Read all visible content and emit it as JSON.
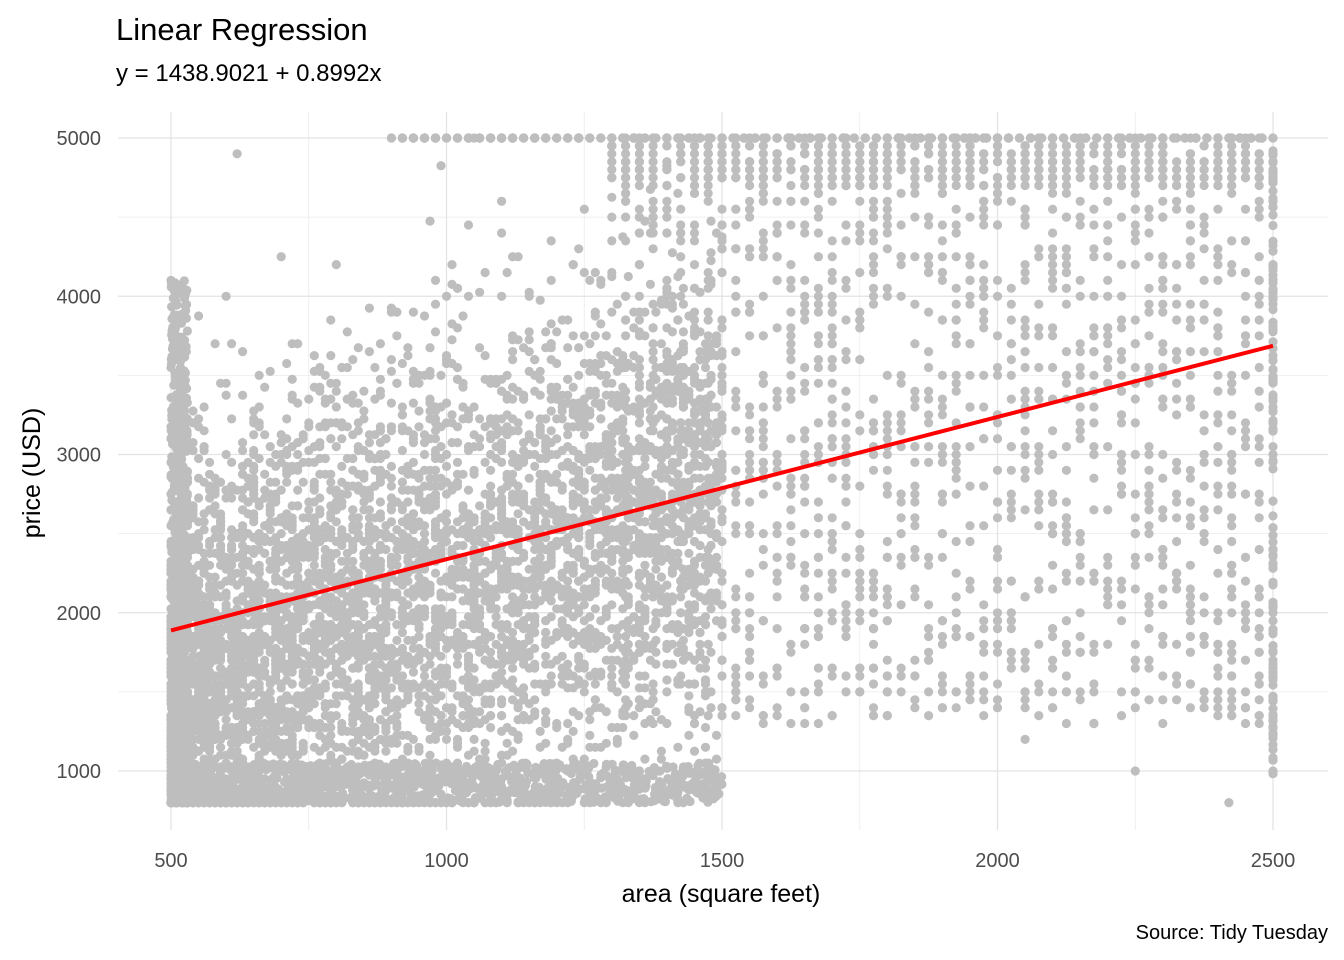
{
  "chart_data": {
    "type": "scatter",
    "title": "Linear Regression",
    "subtitle": "y = 1438.9021 + 0.8992x",
    "caption": "Source: Tidy Tuesday",
    "xlabel": "area (square feet)",
    "ylabel": "price (USD)",
    "xlim": [
      465,
      2560
    ],
    "ylim": [
      760,
      5100
    ],
    "x_ticks": [
      500,
      1000,
      1500,
      2000,
      2500
    ],
    "y_ticks": [
      1000,
      2000,
      3000,
      4000,
      5000
    ],
    "grid": true,
    "point_color": "#bebebe",
    "line_color": "#ff0000",
    "series": [
      {
        "type": "scatter",
        "points_note": "dense cloud of observations, area 500-2500, price 800-5000",
        "sample_points": [
          [
            500,
            4100
          ],
          [
            510,
            3300
          ],
          [
            520,
            2500
          ],
          [
            540,
            1800
          ],
          [
            560,
            1200
          ],
          [
            600,
            900
          ],
          [
            620,
            4900
          ],
          [
            650,
            3000
          ],
          [
            700,
            2200
          ],
          [
            750,
            1500
          ],
          [
            800,
            4200
          ],
          [
            850,
            3400
          ],
          [
            900,
            2800
          ],
          [
            950,
            1000
          ],
          [
            1000,
            3600
          ],
          [
            1050,
            2400
          ],
          [
            1100,
            4600
          ],
          [
            1150,
            1900
          ],
          [
            1200,
            3100
          ],
          [
            1250,
            2600
          ],
          [
            1300,
            900
          ],
          [
            1350,
            4000
          ],
          [
            1400,
            2000
          ],
          [
            1450,
            3500
          ],
          [
            1500,
            1700
          ],
          [
            1550,
            2900
          ],
          [
            1600,
            4400
          ],
          [
            1650,
            1300
          ],
          [
            1700,
            2500
          ],
          [
            1750,
            3800
          ],
          [
            1800,
            2100
          ],
          [
            1850,
            4800
          ],
          [
            1900,
            1600
          ],
          [
            1950,
            3300
          ],
          [
            2000,
            2700
          ],
          [
            2050,
            1200
          ],
          [
            2100,
            4300
          ],
          [
            2150,
            2200
          ],
          [
            2200,
            3600
          ],
          [
            2250,
            1000
          ],
          [
            2300,
            2600
          ],
          [
            2350,
            4700
          ],
          [
            2400,
            1500
          ],
          [
            2450,
            3200
          ],
          [
            2500,
            2000
          ],
          [
            2500,
            4900
          ],
          [
            2500,
            1000
          ],
          [
            2420,
            800
          ]
        ]
      },
      {
        "type": "line",
        "intercept": 1438.9021,
        "slope": 0.8992,
        "x": [
          500,
          2500
        ],
        "y": [
          1888.5,
          3686.9
        ]
      }
    ]
  }
}
